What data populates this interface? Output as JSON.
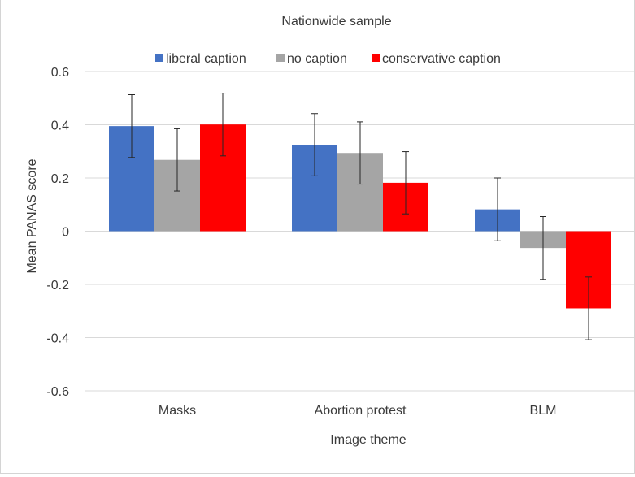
{
  "chart_data": {
    "type": "bar",
    "title": "Nationwide sample",
    "xlabel": "Image theme",
    "ylabel": "Mean PANAS score",
    "categories": [
      "Masks",
      "Abortion protest",
      "BLM"
    ],
    "ylim": [
      -0.6,
      0.6
    ],
    "yticks": [
      0.6,
      0.4,
      0.2,
      0,
      -0.2,
      -0.4,
      -0.6
    ],
    "ytick_labels": [
      "0.6",
      "0.4",
      "0.2",
      "0",
      "-0.2",
      "-0.4",
      "-0.6"
    ],
    "grid": true,
    "legend_position": "top",
    "series": [
      {
        "name": "liberal caption",
        "color": "#4472c4",
        "values": [
          0.395,
          0.325,
          0.082
        ],
        "error": [
          0.118,
          0.117,
          0.118
        ]
      },
      {
        "name": "no caption",
        "color": "#a5a5a5",
        "values": [
          0.268,
          0.294,
          -0.063
        ],
        "error": [
          0.117,
          0.117,
          0.118
        ]
      },
      {
        "name": "conservative caption",
        "color": "#ff0000",
        "values": [
          0.401,
          0.182,
          -0.29
        ],
        "error": [
          0.118,
          0.117,
          0.118
        ]
      }
    ]
  }
}
